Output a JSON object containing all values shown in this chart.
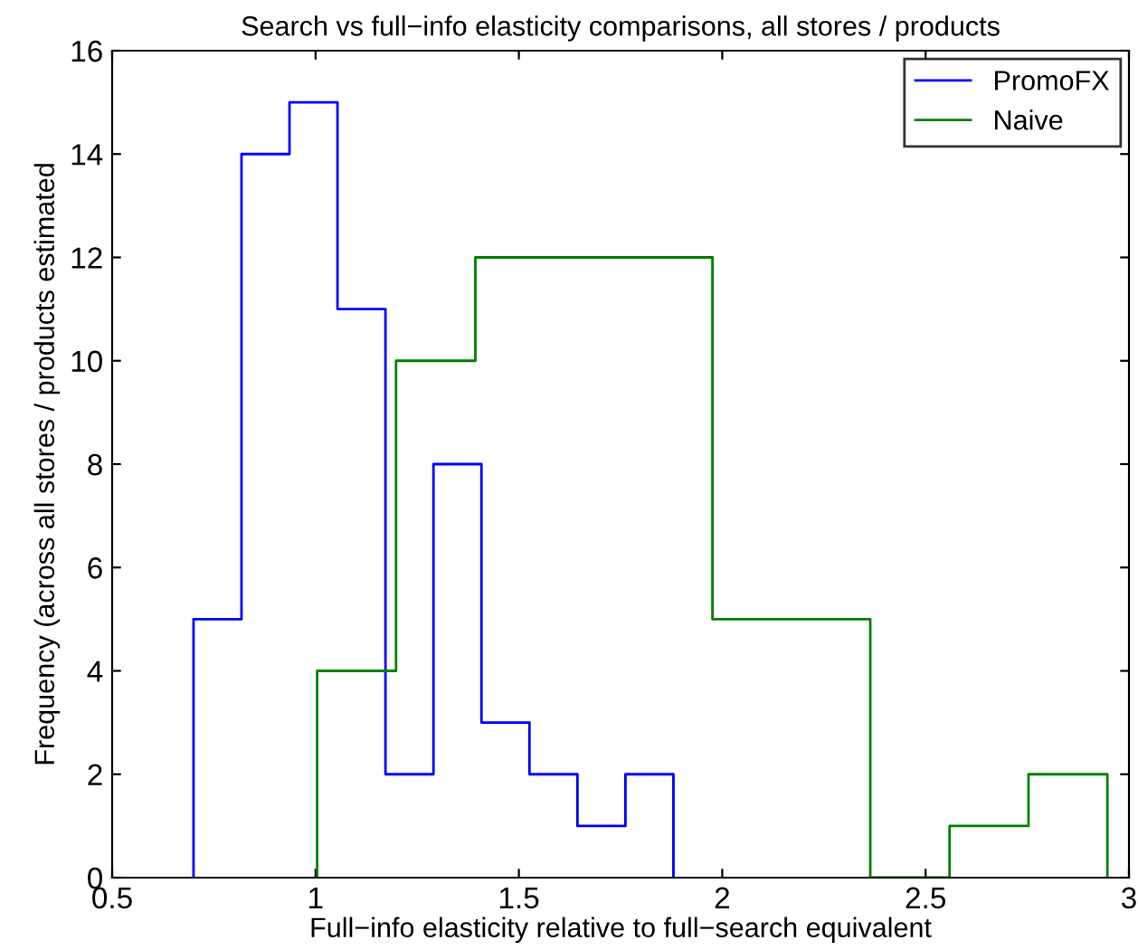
{
  "chart_data": {
    "type": "step",
    "title": "Search vs full−info elasticity comparisons, all stores / products",
    "xlabel": "Full−info elasticity relative to full−search equivalent",
    "ylabel": "Frequency (across all stores / products estimated",
    "series": [
      {
        "name": "PromoFX",
        "color": "#0000ff",
        "x": [
          0.7,
          0.7,
          0.818,
          0.936,
          1.054,
          1.172,
          1.29,
          1.408,
          1.526,
          1.644,
          1.762,
          1.88
        ],
        "values": [
          0,
          5,
          14,
          15,
          11,
          2,
          8,
          3,
          2,
          1,
          2,
          0
        ]
      },
      {
        "name": "Naive",
        "color": "#008000",
        "x": [
          1.004,
          1.004,
          1.198,
          1.393,
          1.587,
          1.781,
          1.976,
          2.17,
          2.364,
          2.559,
          2.753,
          2.947
        ],
        "values": [
          0,
          4,
          10,
          12,
          12,
          12,
          5,
          5,
          0,
          1,
          2,
          0
        ]
      }
    ],
    "xlim": [
      0.5,
      3
    ],
    "xticks": [
      0.5,
      1,
      1.5,
      2,
      2.5,
      3
    ],
    "ylim": [
      0,
      16
    ],
    "yticks": [
      0,
      2,
      4,
      6,
      8,
      10,
      12,
      14,
      16
    ],
    "legend": "top right"
  }
}
